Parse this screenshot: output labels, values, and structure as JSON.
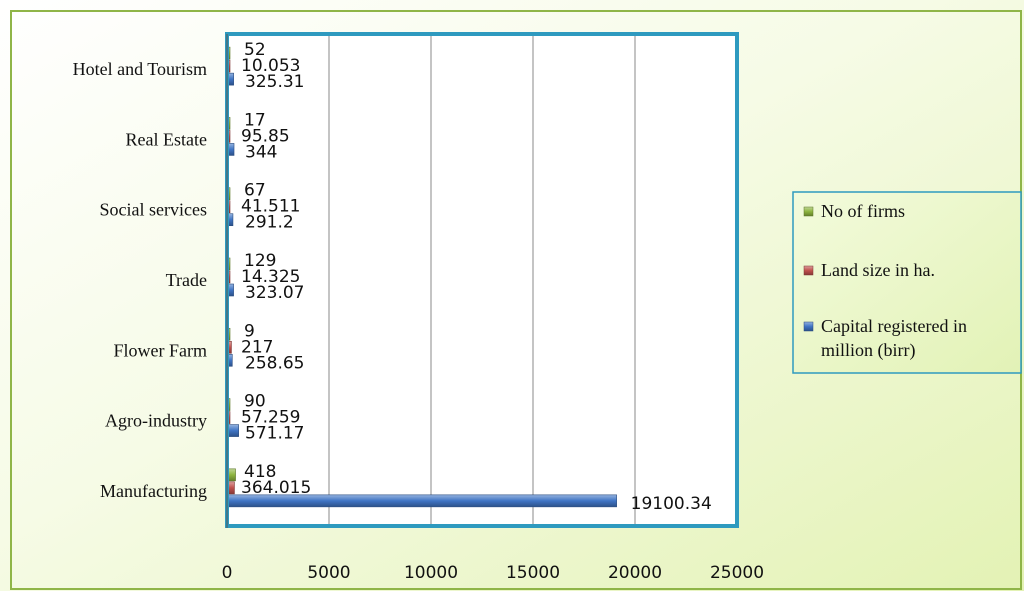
{
  "chart_data": {
    "type": "bar",
    "orientation": "horizontal",
    "categories": [
      "Manufacturing",
      "Agro-industry",
      "Flower Farm",
      "Trade",
      "Social services",
      "Real Estate",
      "Hotel and Tourism"
    ],
    "series": [
      {
        "name": "Capital registered in million (birr)",
        "color": "#3F74C4",
        "values": [
          19100.34,
          571.17,
          258.65,
          323.07,
          291.2,
          344,
          325.31
        ],
        "labels": [
          "19100.34",
          "571.17",
          "258.65",
          "323.07",
          "291.2",
          "344",
          "325.31"
        ]
      },
      {
        "name": "Land size in ha.",
        "color": "#C0504D",
        "values": [
          364.015,
          57.259,
          217,
          14.325,
          41.511,
          95.85,
          10.053
        ],
        "labels": [
          "364.015",
          "57.259",
          "217",
          "14.325",
          "41.511",
          "95.85",
          "10.053"
        ]
      },
      {
        "name": "No of firms",
        "color": "#8DB43E",
        "values": [
          418,
          90,
          9,
          129,
          67,
          17,
          52
        ],
        "labels": [
          "418",
          "90",
          "9",
          "129",
          "67",
          "17",
          "52"
        ]
      }
    ],
    "legend_order": [
      "No of firms",
      "Land size in ha.",
      "Capital registered in million (birr)"
    ],
    "xlim": [
      0,
      25000
    ],
    "xticks": [
      0,
      5000,
      10000,
      15000,
      20000,
      25000
    ],
    "grid": "vertical",
    "legend_position": "right",
    "title": "",
    "xlabel": "",
    "ylabel": ""
  }
}
